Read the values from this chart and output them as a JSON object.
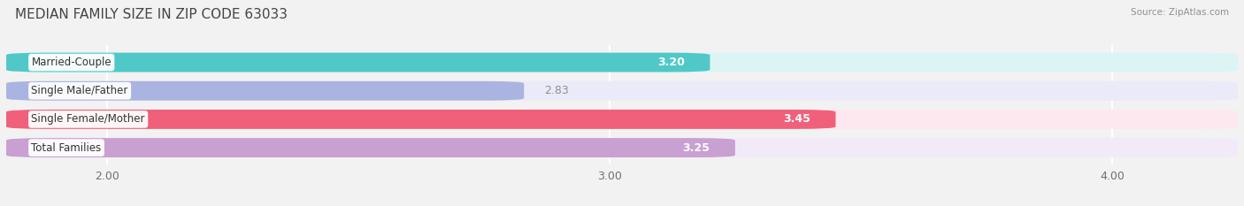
{
  "title": "MEDIAN FAMILY SIZE IN ZIP CODE 63033",
  "source": "Source: ZipAtlas.com",
  "categories": [
    "Married-Couple",
    "Single Male/Father",
    "Single Female/Mother",
    "Total Families"
  ],
  "values": [
    3.2,
    2.83,
    3.45,
    3.25
  ],
  "bar_colors": [
    "#50c8c8",
    "#aab4e0",
    "#f0607a",
    "#c8a0d2"
  ],
  "bar_bg_colors": [
    "#ddf4f4",
    "#eaeaf8",
    "#fde8f0",
    "#f2eaf8"
  ],
  "value_in_bar": [
    true,
    false,
    true,
    true
  ],
  "value_colors": [
    "#ffffff",
    "#909090",
    "#ffffff",
    "#ffffff"
  ],
  "xlim": [
    1.8,
    4.25
  ],
  "xticks": [
    2.0,
    3.0,
    4.0
  ],
  "xtick_labels": [
    "2.00",
    "3.00",
    "4.00"
  ],
  "figsize": [
    14.06,
    2.33
  ],
  "dpi": 100,
  "title_fontsize": 11,
  "bar_height": 0.68,
  "label_fontsize": 8.5,
  "value_fontsize": 9,
  "bg_color": "#f2f2f2"
}
